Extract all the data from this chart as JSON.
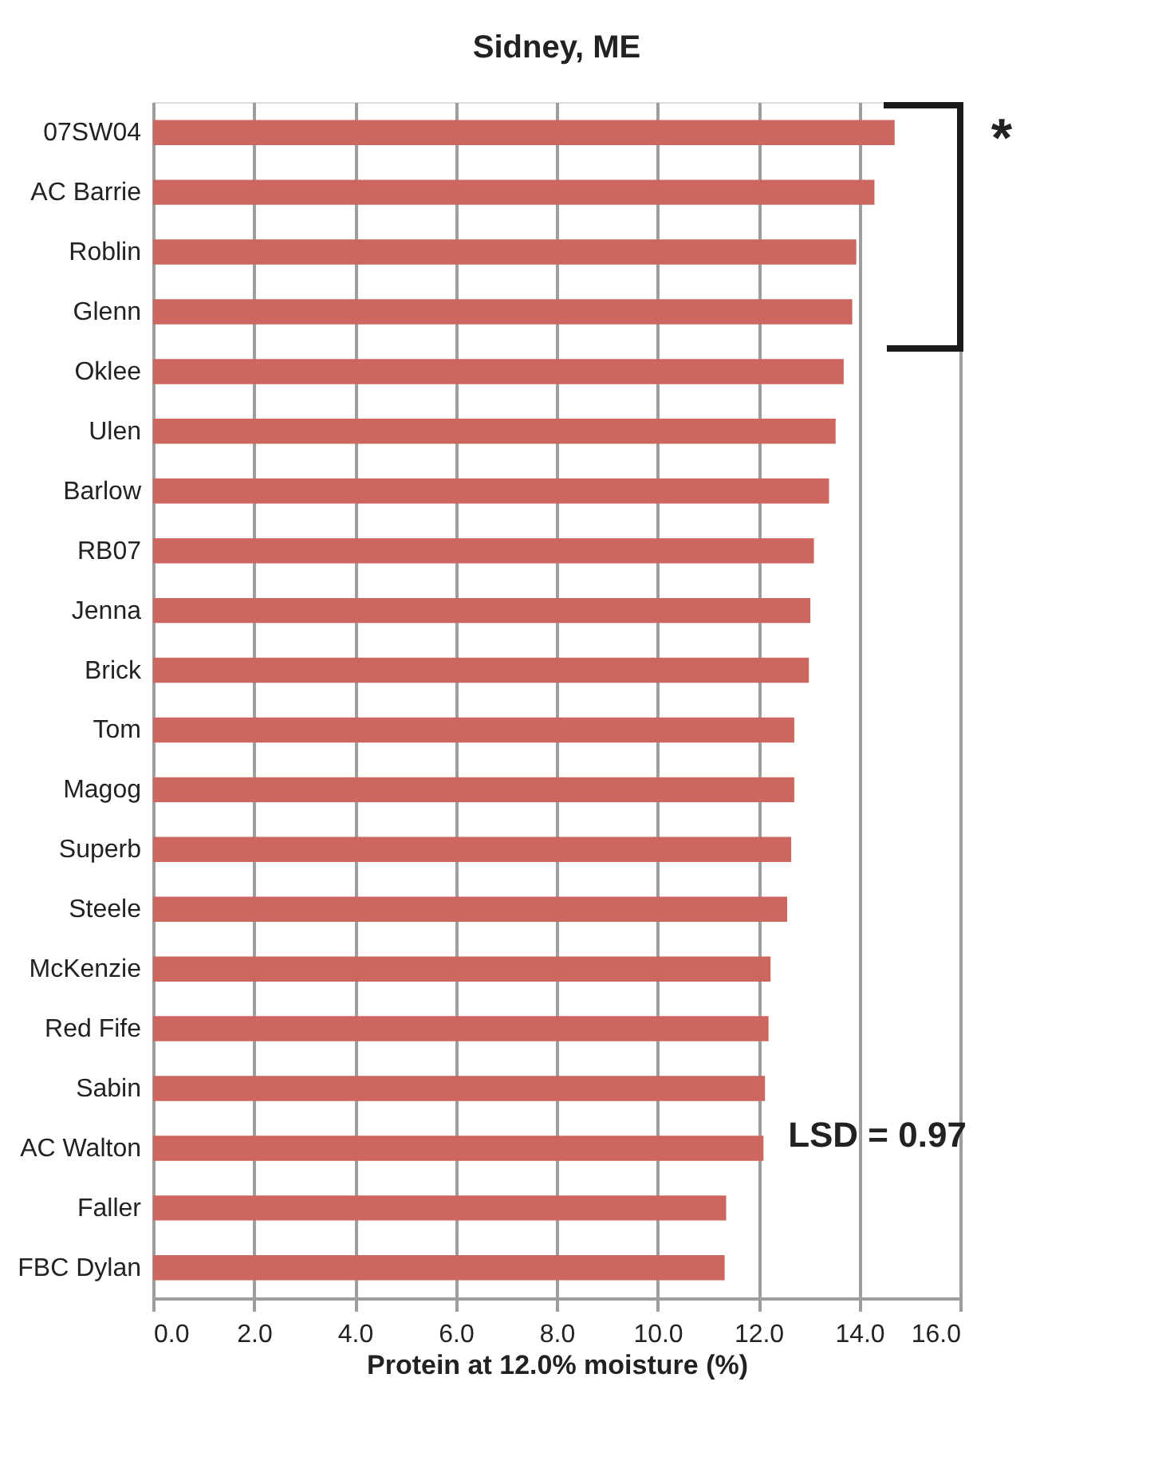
{
  "chart_data": {
    "type": "bar",
    "orientation": "horizontal",
    "title": "Sidney, ME",
    "xlabel": "Protein at 12.0% moisture (%)",
    "categories": [
      "07SW04",
      "AC Barrie",
      "Roblin",
      "Glenn",
      "Oklee",
      "Ulen",
      "Barlow",
      "RB07",
      "Jenna",
      "Brick",
      "Tom",
      "Magog",
      "Superb",
      "Steele",
      "McKenzie",
      "Red Fife",
      "Sabin",
      "AC Walton",
      "Faller",
      "FBC Dylan"
    ],
    "values": [
      14.7,
      14.3,
      13.94,
      13.86,
      13.69,
      13.53,
      13.4,
      13.1,
      13.03,
      13.0,
      12.71,
      12.71,
      12.65,
      12.57,
      12.24,
      12.2,
      12.13,
      12.1,
      11.36,
      11.33
    ],
    "color": "#cd665f",
    "xlim": [
      0,
      16
    ],
    "xticks": [
      {
        "value": 0,
        "label": "0.0"
      },
      {
        "value": 2,
        "label": "2.0"
      },
      {
        "value": 4,
        "label": "4.0"
      },
      {
        "value": 6,
        "label": "6.0"
      },
      {
        "value": 8,
        "label": "8.0"
      },
      {
        "value": 10,
        "label": "10.0"
      },
      {
        "value": 12,
        "label": "12.0"
      },
      {
        "value": 14,
        "label": "14.0"
      },
      {
        "value": 16,
        "label": "16.0"
      }
    ],
    "grid": "x",
    "annotations": [
      "*",
      "LSD = 0.97"
    ]
  }
}
